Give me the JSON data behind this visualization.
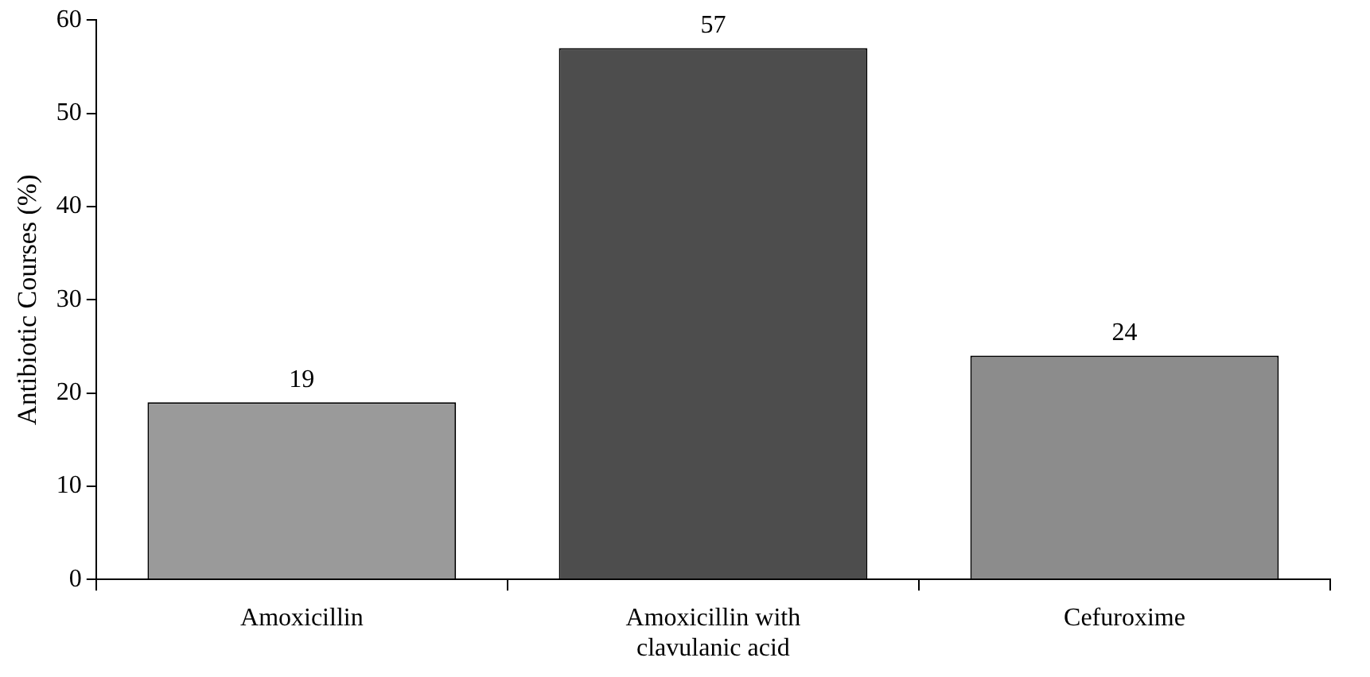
{
  "chart_data": {
    "type": "bar",
    "ylabel": "Antibiotic Courses (%)",
    "categories": [
      "Amoxicillin",
      "Amoxicillin with clavulanic acid",
      "Cefuroxime"
    ],
    "values": [
      19,
      57,
      24
    ],
    "colors": [
      "#9a9a9a",
      "#4d4d4d",
      "#8c8c8c"
    ],
    "ylim": [
      0,
      60
    ],
    "yticks": [
      0,
      10,
      20,
      30,
      40,
      50,
      60
    ],
    "grid": false,
    "legend": false,
    "data_labels": true
  }
}
